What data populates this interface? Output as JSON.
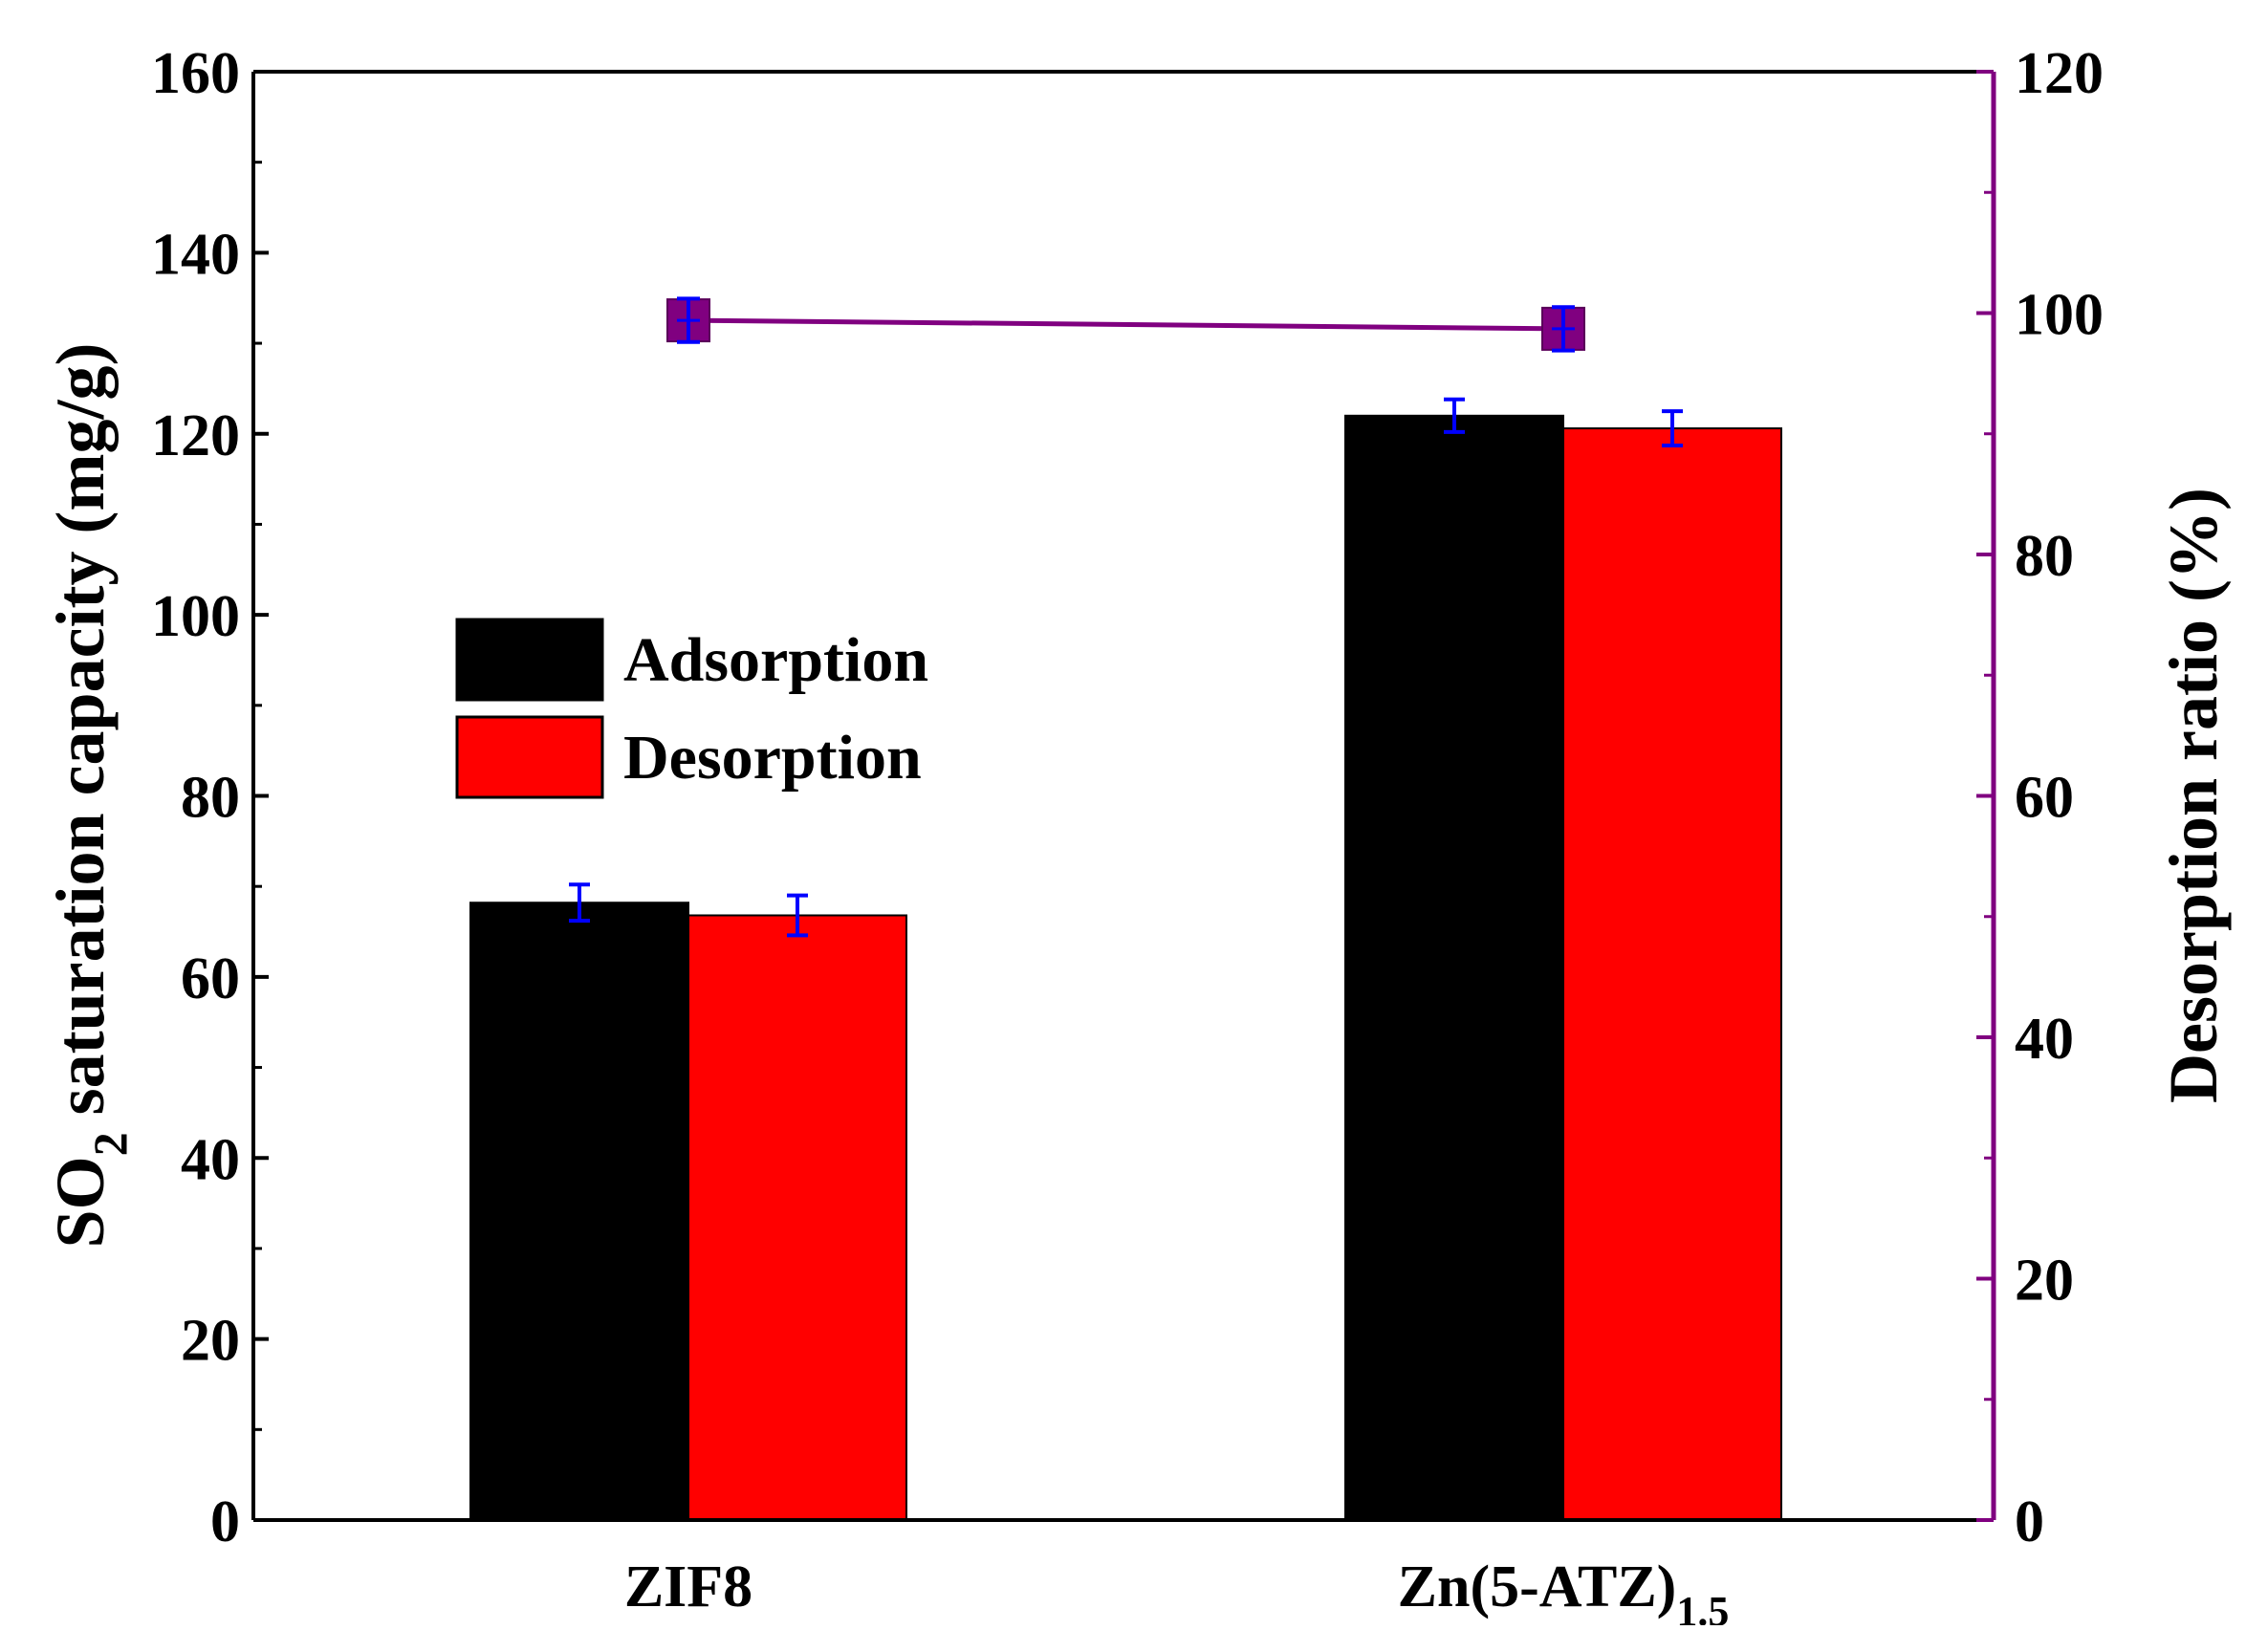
{
  "chart_data": {
    "type": "bar",
    "categories": [
      "ZIF8",
      "Zn(5-ATZ)"
    ],
    "category_subscripts": [
      "",
      "1.5"
    ],
    "series": [
      {
        "name": "Adsorption",
        "color": "#000000",
        "values": [
          68.2,
          122.0
        ],
        "errors": [
          2.0,
          1.8
        ],
        "axis": "left"
      },
      {
        "name": "Desorption",
        "color": "#ff0000",
        "values": [
          66.8,
          120.6
        ],
        "errors": [
          2.2,
          1.9
        ],
        "axis": "left"
      }
    ],
    "line_series": {
      "color": "#800080",
      "marker_color": "#800080",
      "error_color": "#0000ff",
      "values": [
        99.4,
        98.7
      ],
      "errors": [
        1.8,
        1.8
      ],
      "axis": "right"
    },
    "ylabel_left_parts": [
      "SO",
      "2",
      " saturation capacity (mg/g)"
    ],
    "ylabel_right": "Desorption ratio (%)",
    "ylim_left": [
      0,
      160
    ],
    "ylim_right": [
      0,
      120
    ],
    "yticks_left": [
      "0",
      "20",
      "40",
      "60",
      "80",
      "100",
      "120",
      "140",
      "160"
    ],
    "yticks_right": [
      "0",
      "20",
      "40",
      "60",
      "80",
      "100",
      "120"
    ],
    "error_bar_color": "#0000ff",
    "right_axis_color": "#800080",
    "legend": {
      "placement": "center-left",
      "entries": [
        "Adsorption",
        "Desorption"
      ]
    },
    "grid": false
  }
}
